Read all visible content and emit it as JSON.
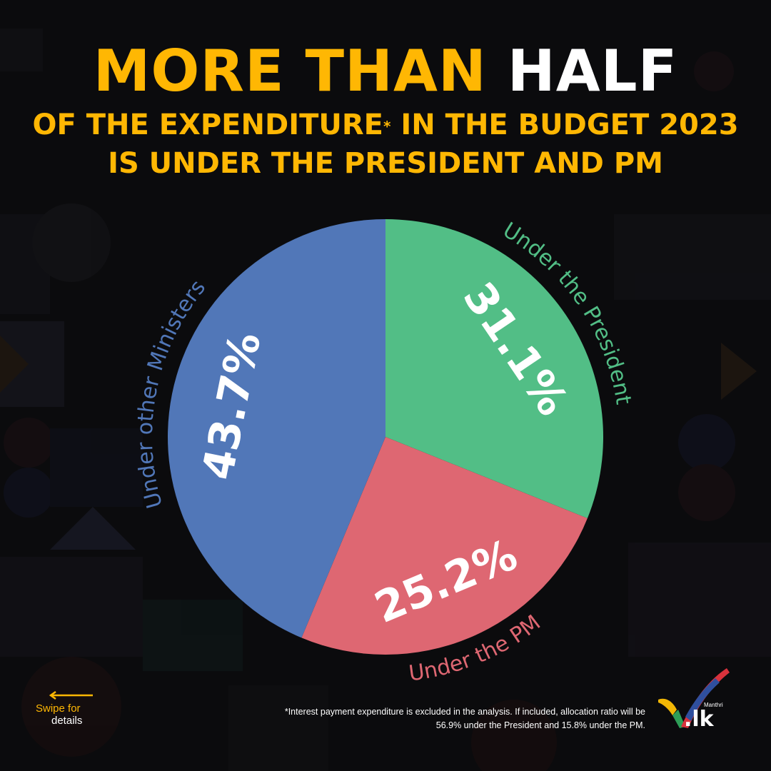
{
  "title": {
    "line1_yellow": "MORE THAN",
    "line1_white": "HALF",
    "line2_text": "OF THE EXPENDITURE",
    "line2_mark": "*",
    "line2_rest": "IN THE BUDGET 2023",
    "line3": "IS UNDER THE PRESIDENT AND PM"
  },
  "chart_data": {
    "type": "pie",
    "start_angle_deg": 0,
    "direction": "clockwise",
    "slices": [
      {
        "label": "Under the President",
        "value": 31.1,
        "value_label": "31.1%",
        "color": "#52be86"
      },
      {
        "label": "Under the PM",
        "value": 25.2,
        "value_label": "25.2%",
        "color": "#de6772"
      },
      {
        "label": "Under other Ministers",
        "value": 43.7,
        "value_label": "43.7%",
        "color": "#5177b8"
      }
    ]
  },
  "swipe": {
    "line1": "Swipe for",
    "line2": "details",
    "color": "#ffb703"
  },
  "footnote": {
    "line1": "*Interest payment expenditure is excluded in the analysis. If included, allocation ratio will be",
    "line2": "56.9% under the President and 15.8% under the PM."
  },
  "logo": {
    "small": "Manthri",
    "big": ".lk"
  },
  "colors": {
    "accent_yellow": "#ffb703",
    "background": "#0b0b0d"
  }
}
